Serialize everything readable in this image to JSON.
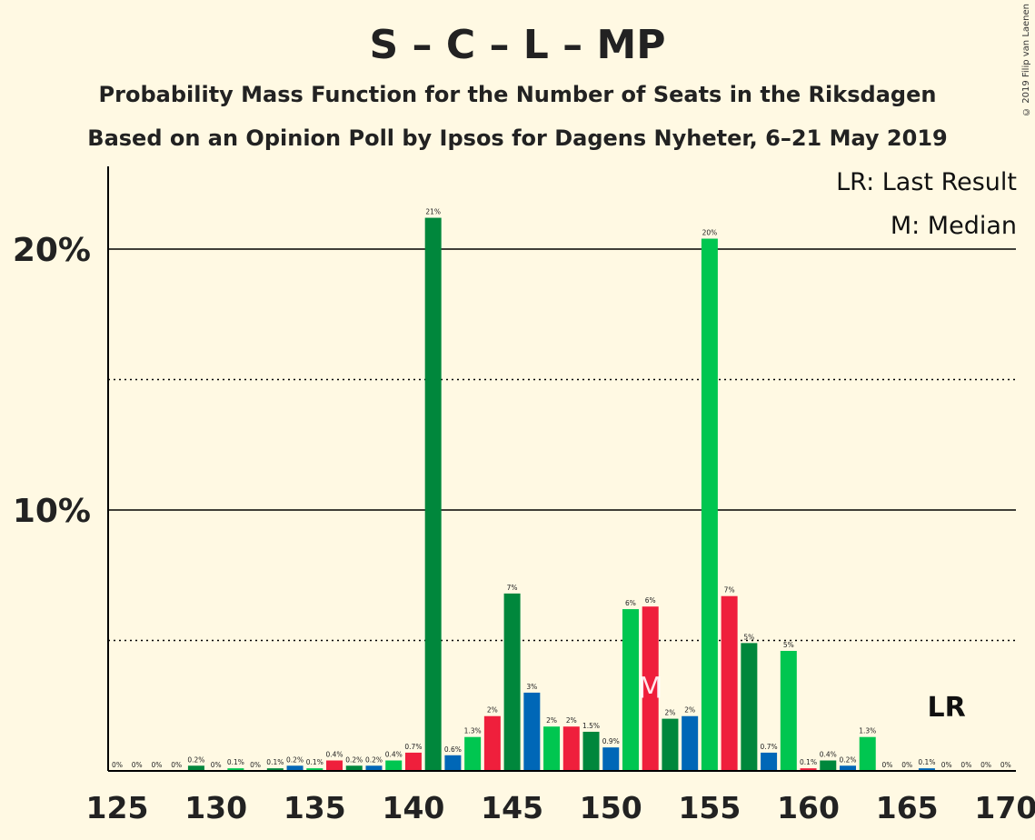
{
  "title": "S – C – L – MP",
  "subtitle": "Probability Mass Function for the Number of Seats in the Riksdagen",
  "subtitle2": "Based on an Opinion Poll by Ipsos for Dagens Nyheter, 6–21 May 2019",
  "copyright": "© 2019 Filip van Laenen",
  "legend": {
    "lr": "LR: Last Result",
    "m": "M: Median"
  },
  "colors": {
    "dark_green": "#00873C",
    "light_green": "#00C650",
    "blue": "#0067B7",
    "red": "#EF1F3C",
    "background": "#FFF9E3"
  },
  "chart_data": {
    "type": "bar",
    "x": [
      125,
      126,
      127,
      128,
      129,
      130,
      131,
      132,
      133,
      134,
      135,
      136,
      137,
      138,
      139,
      140,
      141,
      142,
      143,
      144,
      145,
      146,
      147,
      148,
      149,
      150,
      151,
      152,
      153,
      154,
      155,
      156,
      157,
      158,
      159,
      160,
      161,
      162,
      163,
      164,
      165,
      166,
      167,
      168,
      169,
      170
    ],
    "values": [
      0,
      0,
      0,
      0,
      0.2,
      0,
      0.1,
      0,
      0.1,
      0.2,
      0.1,
      0.4,
      0.2,
      0.2,
      0.4,
      0.7,
      21.2,
      0.6,
      1.3,
      2.1,
      6.8,
      3.0,
      1.7,
      1.7,
      1.5,
      0.9,
      6.2,
      6.3,
      2.0,
      2.1,
      20.4,
      6.7,
      4.9,
      0.7,
      4.6,
      0.1,
      0.4,
      0.2,
      1.3,
      0,
      0,
      0.1,
      0,
      0,
      0,
      0
    ],
    "labels": [
      "0%",
      "0%",
      "0%",
      "0%",
      "0.2%",
      "0%",
      "0.1%",
      "0%",
      "0.1%",
      "0.2%",
      "0.1%",
      "0.4%",
      "0.2%",
      "0.2%",
      "0.4%",
      "0.7%",
      "21%",
      "0.6%",
      "1.3%",
      "2%",
      "7%",
      "3%",
      "2%",
      "2%",
      "1.5%",
      "0.9%",
      "6%",
      "6%",
      "2%",
      "2%",
      "20%",
      "7%",
      "5%",
      "0.7%",
      "5%",
      "0.1%",
      "0.4%",
      "0.2%",
      "1.3%",
      "0%",
      "0%",
      "0.1%",
      "0%",
      "0%",
      "0%",
      "0%"
    ],
    "bar_colors": [
      "dark_green",
      "blue",
      "light_green",
      "red",
      "dark_green",
      "blue",
      "light_green",
      "red",
      "dark_green",
      "blue",
      "light_green",
      "red",
      "dark_green",
      "blue",
      "light_green",
      "red",
      "dark_green",
      "blue",
      "light_green",
      "red",
      "dark_green",
      "blue",
      "light_green",
      "red",
      "dark_green",
      "blue",
      "light_green",
      "red",
      "dark_green",
      "blue",
      "light_green",
      "red",
      "dark_green",
      "blue",
      "light_green",
      "red",
      "dark_green",
      "blue",
      "light_green",
      "red",
      "dark_green",
      "blue",
      "light_green",
      "red",
      "dark_green",
      "blue"
    ],
    "x_ticks": [
      "125",
      "130",
      "135",
      "140",
      "145",
      "150",
      "155",
      "160",
      "165",
      "170"
    ],
    "y_ticks": [
      "10%",
      "20%"
    ],
    "ylim": [
      0,
      23
    ],
    "solid_grid": [
      10,
      20
    ],
    "dotted_grid": [
      5,
      15
    ],
    "median": 152,
    "median_label": "M",
    "last_result": 167,
    "last_result_label": "LR"
  }
}
